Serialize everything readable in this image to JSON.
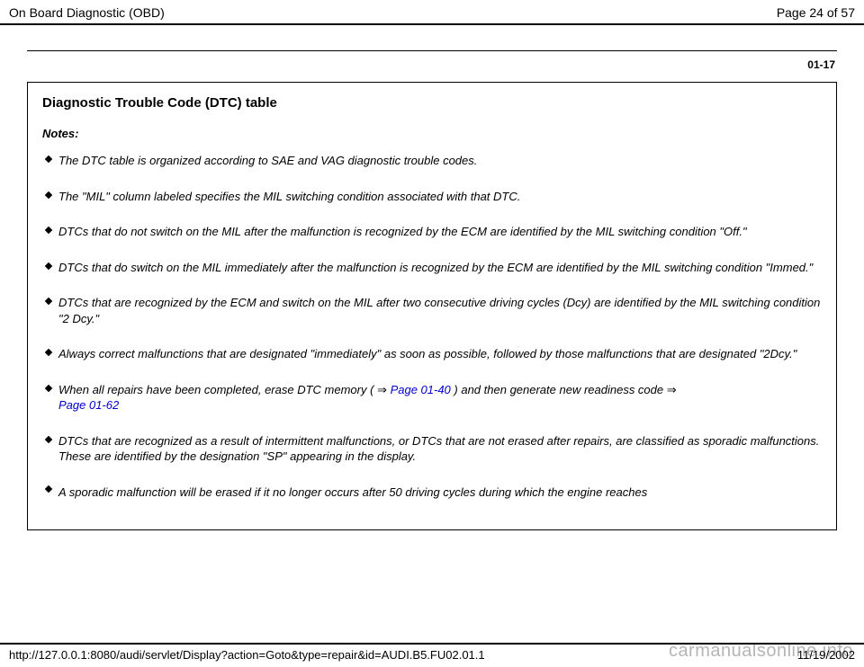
{
  "header": {
    "title": "On Board Diagnostic (OBD)",
    "page_info": "Page 24 of 57"
  },
  "page_ref": "01-17",
  "section_title": "Diagnostic Trouble Code (DTC) table",
  "notes_label": "Notes:",
  "notes": [
    "The DTC table is organized according to SAE and VAG diagnostic trouble codes.",
    "The \"MIL\" column labeled specifies the MIL switching condition associated with that DTC.",
    "DTCs that do not switch on the MIL after the malfunction is recognized by the ECM are identified by the MIL switching condition \"Off.\"",
    "DTCs that do switch on the MIL immediately after the malfunction is recognized by the ECM are identified by the MIL switching condition \"Immed.\"",
    "DTCs that are recognized by the ECM and switch on the MIL after two consecutive driving cycles (Dcy) are identified by the MIL switching condition \"2 Dcy.\"",
    "Always correct malfunctions that are designated \"immediately\" as soon as possible, followed by those malfunctions that are designated \"2Dcy.\""
  ],
  "note_link": {
    "pre": "When all repairs have been completed, erase DTC memory ( ",
    "arrow": "⇒",
    "link1": " Page 01-40 ",
    "mid": " ) and then generate new readiness code ",
    "link2": "Page 01-62"
  },
  "note_after_link": "DTCs that are recognized as a result of intermittent malfunctions, or DTCs that are not erased after repairs, are classified as sporadic malfunctions. These are identified by the designation \"SP\" appearing in the display.",
  "note_drop": "A sporadic malfunction will be erased if it no longer occurs after 50 driving cycles during which the engine reaches",
  "footer": {
    "url": "http://127.0.0.1:8080/audi/servlet/Display?action=Goto&type=repair&id=AUDI.B5.FU02.01.1",
    "date": "11/19/2002"
  },
  "watermark": "carmanualsonline.info"
}
